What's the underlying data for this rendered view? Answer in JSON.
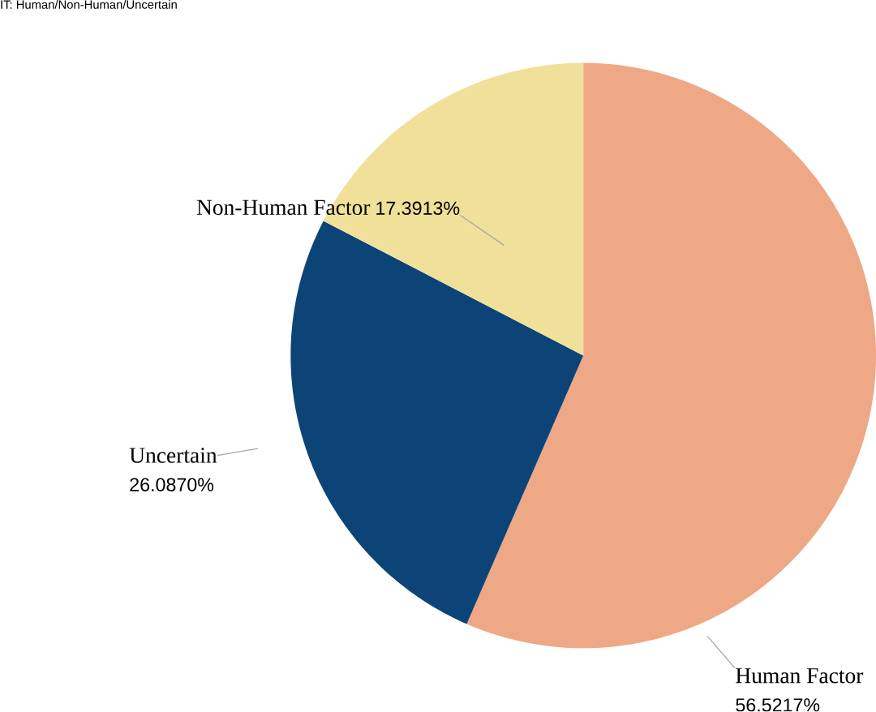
{
  "chart_data": {
    "type": "pie",
    "title": "IT:  Human/Non-Human/Uncertain",
    "categories": [
      "Human Factor",
      "Uncertain",
      "Non-Human Factor"
    ],
    "values": [
      56.5217,
      26.087,
      17.3913
    ],
    "value_labels": [
      "56.5217%",
      "26.0870%",
      "17.3913%"
    ],
    "colors": [
      "#eea886",
      "#0d4478",
      "#f0e09a"
    ]
  }
}
